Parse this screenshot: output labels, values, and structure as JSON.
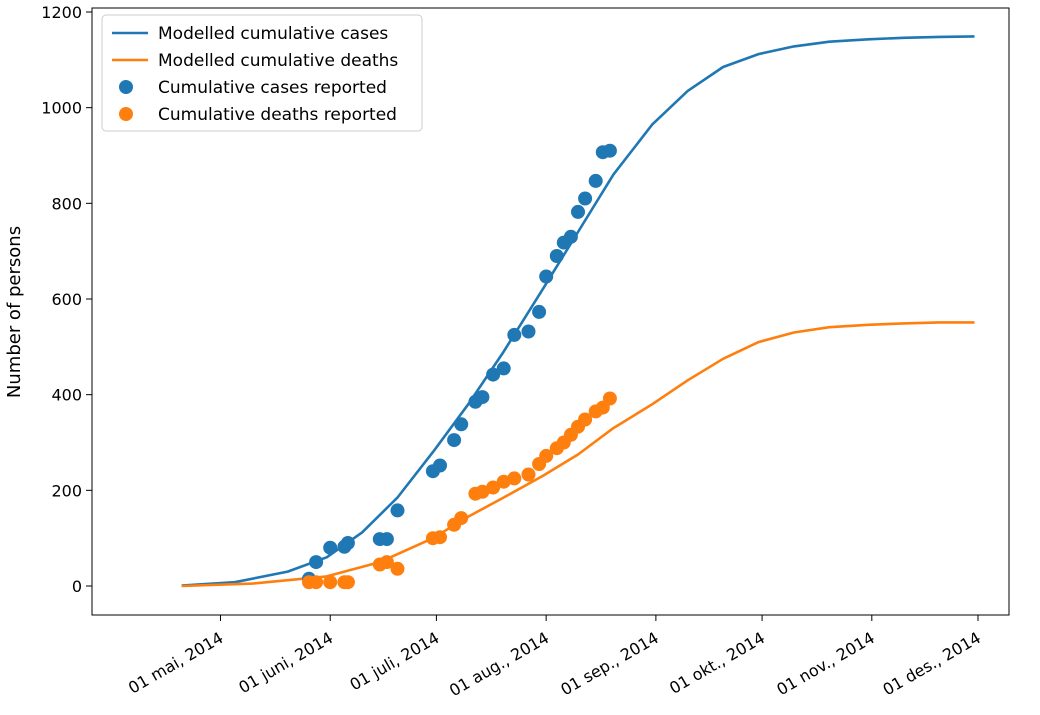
{
  "chart_data": {
    "type": "line",
    "title": "",
    "xlabel": "",
    "ylabel": "Number of persons",
    "xlim": [
      "2014-04-06",
      "2014-12-01"
    ],
    "ylim": [
      -60,
      1200
    ],
    "yticks": [
      0,
      200,
      400,
      600,
      800,
      1000,
      1200
    ],
    "xticks": [
      {
        "date": "2014-05-01",
        "label": "01 mai, 2014"
      },
      {
        "date": "2014-06-01",
        "label": "01 juni, 2014"
      },
      {
        "date": "2014-07-01",
        "label": "01 juli, 2014"
      },
      {
        "date": "2014-08-01",
        "label": "01 aug., 2014"
      },
      {
        "date": "2014-09-01",
        "label": "01 sep., 2014"
      },
      {
        "date": "2014-10-01",
        "label": "01 okt., 2014"
      },
      {
        "date": "2014-11-01",
        "label": "01 nov., 2014"
      },
      {
        "date": "2014-12-01",
        "label": "01 des., 2014"
      }
    ],
    "grid": false,
    "legend_position": "top-left",
    "colors": {
      "cases": "#1f77b4",
      "deaths": "#ff7f0e"
    },
    "series": [
      {
        "name": "Modelled cumulative cases",
        "kind": "line",
        "color": "#1f77b4",
        "x": [
          "2014-04-20",
          "2014-05-05",
          "2014-05-20",
          "2014-05-31",
          "2014-06-10",
          "2014-06-20",
          "2014-06-30",
          "2014-07-10",
          "2014-07-20",
          "2014-07-31",
          "2014-08-10",
          "2014-08-20",
          "2014-08-31",
          "2014-09-10",
          "2014-09-20",
          "2014-09-30",
          "2014-10-10",
          "2014-10-20",
          "2014-10-31",
          "2014-11-10",
          "2014-11-20",
          "2014-11-30"
        ],
        "values": [
          1,
          8,
          30,
          60,
          112,
          185,
          280,
          380,
          490,
          620,
          740,
          860,
          965,
          1035,
          1085,
          1112,
          1128,
          1138,
          1143,
          1146,
          1148,
          1149
        ]
      },
      {
        "name": "Modelled cumulative deaths",
        "kind": "line",
        "color": "#ff7f0e",
        "x": [
          "2014-04-20",
          "2014-05-10",
          "2014-05-31",
          "2014-06-15",
          "2014-06-30",
          "2014-07-10",
          "2014-07-20",
          "2014-07-31",
          "2014-08-10",
          "2014-08-20",
          "2014-08-31",
          "2014-09-10",
          "2014-09-20",
          "2014-09-30",
          "2014-10-10",
          "2014-10-20",
          "2014-10-31",
          "2014-11-10",
          "2014-11-20",
          "2014-11-30"
        ],
        "values": [
          0,
          5,
          20,
          50,
          100,
          145,
          185,
          230,
          275,
          330,
          380,
          430,
          475,
          510,
          530,
          541,
          546,
          549,
          551,
          551
        ]
      },
      {
        "name": "Cumulative cases reported",
        "kind": "scatter",
        "color": "#1f77b4",
        "x": [
          "2014-05-26",
          "2014-05-28",
          "2014-06-01",
          "2014-06-05",
          "2014-06-06",
          "2014-06-15",
          "2014-06-17",
          "2014-06-20",
          "2014-06-30",
          "2014-07-02",
          "2014-07-06",
          "2014-07-08",
          "2014-07-12",
          "2014-07-14",
          "2014-07-17",
          "2014-07-20",
          "2014-07-23",
          "2014-07-27",
          "2014-07-30",
          "2014-08-01",
          "2014-08-04",
          "2014-08-06",
          "2014-08-08",
          "2014-08-10",
          "2014-08-12",
          "2014-08-15",
          "2014-08-17",
          "2014-08-19"
        ],
        "values": [
          15,
          50,
          80,
          82,
          90,
          98,
          98,
          158,
          240,
          252,
          305,
          338,
          385,
          395,
          442,
          455,
          525,
          532,
          573,
          647,
          690,
          718,
          730,
          782,
          810,
          847,
          907,
          910
        ]
      },
      {
        "name": "Cumulative deaths reported",
        "kind": "scatter",
        "color": "#ff7f0e",
        "x": [
          "2014-05-26",
          "2014-05-28",
          "2014-06-01",
          "2014-06-05",
          "2014-06-06",
          "2014-06-15",
          "2014-06-17",
          "2014-06-20",
          "2014-06-30",
          "2014-07-02",
          "2014-07-06",
          "2014-07-08",
          "2014-07-12",
          "2014-07-14",
          "2014-07-17",
          "2014-07-20",
          "2014-07-23",
          "2014-07-27",
          "2014-07-30",
          "2014-08-01",
          "2014-08-04",
          "2014-08-06",
          "2014-08-08",
          "2014-08-10",
          "2014-08-12",
          "2014-08-15",
          "2014-08-17",
          "2014-08-19"
        ],
        "values": [
          8,
          8,
          8,
          8,
          8,
          45,
          50,
          36,
          100,
          102,
          128,
          142,
          193,
          197,
          206,
          218,
          225,
          233,
          255,
          272,
          288,
          300,
          316,
          333,
          348,
          365,
          373,
          392
        ]
      }
    ]
  }
}
